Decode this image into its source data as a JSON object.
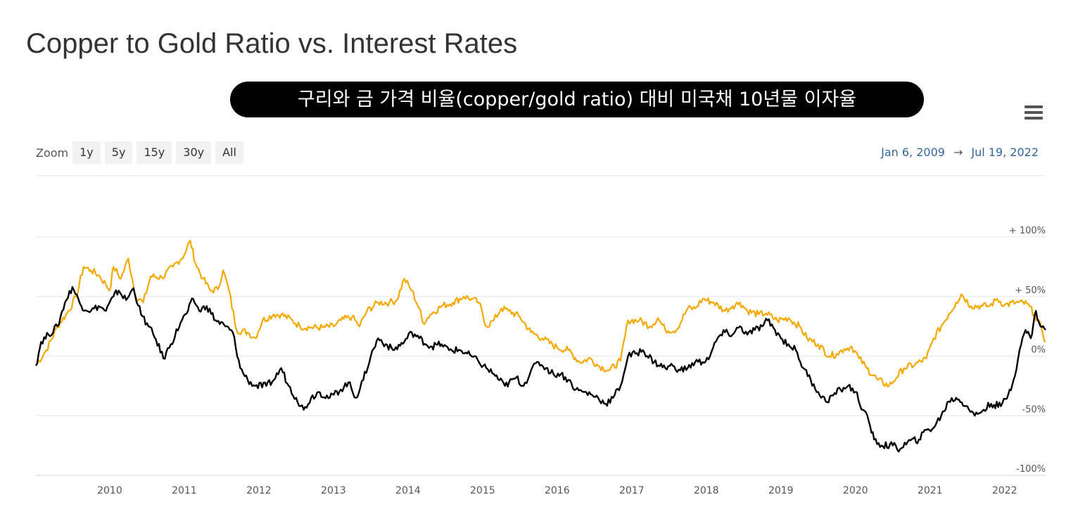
{
  "title": "Copper to Gold Ratio vs. Interest Rates",
  "banner": "구리와 금 가격 비율(copper/gold ratio) 대비 미국채 10년물 이자율",
  "zoom": {
    "label": "Zoom",
    "buttons": [
      "1y",
      "5y",
      "15y",
      "30y",
      "All"
    ]
  },
  "range": {
    "from": "Jan 6, 2009",
    "arrow": "→",
    "to": "Jul 19, 2022"
  },
  "icons": {
    "menu": "hamburger-menu-icon"
  },
  "chart_data": {
    "type": "line",
    "x_unit": "year",
    "xlim": [
      2009.01,
      2022.55
    ],
    "ylim": [
      -100,
      100
    ],
    "y_ticks": [
      {
        "value": 100,
        "label": "+ 100%"
      },
      {
        "value": 50,
        "label": "+ 50%"
      },
      {
        "value": 0,
        "label": "0%"
      },
      {
        "value": -50,
        "label": "-50%"
      },
      {
        "value": -100,
        "label": "-100%"
      }
    ],
    "x_ticks": [
      "2010",
      "2011",
      "2012",
      "2013",
      "2014",
      "2015",
      "2016",
      "2017",
      "2018",
      "2019",
      "2020",
      "2021",
      "2022"
    ],
    "grid": true,
    "series": [
      {
        "color": "#f5a800",
        "points": [
          [
            2009.01,
            -8
          ],
          [
            2009.15,
            5
          ],
          [
            2009.3,
            25
          ],
          [
            2009.45,
            38
          ],
          [
            2009.55,
            50
          ],
          [
            2009.65,
            75
          ],
          [
            2009.75,
            72
          ],
          [
            2009.85,
            68
          ],
          [
            2009.95,
            60
          ],
          [
            2010.0,
            55
          ],
          [
            2010.05,
            75
          ],
          [
            2010.15,
            65
          ],
          [
            2010.25,
            82
          ],
          [
            2010.35,
            50
          ],
          [
            2010.45,
            45
          ],
          [
            2010.55,
            67
          ],
          [
            2010.7,
            66
          ],
          [
            2010.85,
            75
          ],
          [
            2011.0,
            85
          ],
          [
            2011.08,
            97
          ],
          [
            2011.15,
            78
          ],
          [
            2011.25,
            65
          ],
          [
            2011.35,
            55
          ],
          [
            2011.45,
            56
          ],
          [
            2011.52,
            72
          ],
          [
            2011.6,
            55
          ],
          [
            2011.7,
            22
          ],
          [
            2011.85,
            20
          ],
          [
            2011.95,
            15
          ],
          [
            2012.05,
            30
          ],
          [
            2012.2,
            35
          ],
          [
            2012.3,
            35
          ],
          [
            2012.45,
            30
          ],
          [
            2012.55,
            25
          ],
          [
            2012.7,
            24
          ],
          [
            2012.85,
            24
          ],
          [
            2013.0,
            25
          ],
          [
            2013.1,
            30
          ],
          [
            2013.25,
            33
          ],
          [
            2013.35,
            25
          ],
          [
            2013.45,
            38
          ],
          [
            2013.6,
            45
          ],
          [
            2013.75,
            45
          ],
          [
            2013.85,
            47
          ],
          [
            2013.95,
            65
          ],
          [
            2014.05,
            55
          ],
          [
            2014.15,
            40
          ],
          [
            2014.2,
            28
          ],
          [
            2014.3,
            35
          ],
          [
            2014.45,
            42
          ],
          [
            2014.6,
            45
          ],
          [
            2014.75,
            50
          ],
          [
            2014.85,
            48
          ],
          [
            2014.95,
            45
          ],
          [
            2015.05,
            25
          ],
          [
            2015.15,
            30
          ],
          [
            2015.25,
            40
          ],
          [
            2015.35,
            38
          ],
          [
            2015.5,
            33
          ],
          [
            2015.65,
            20
          ],
          [
            2015.8,
            15
          ],
          [
            2016.0,
            7
          ],
          [
            2016.15,
            5
          ],
          [
            2016.3,
            -5
          ],
          [
            2016.45,
            -2
          ],
          [
            2016.55,
            -8
          ],
          [
            2016.7,
            -12
          ],
          [
            2016.85,
            -4
          ],
          [
            2016.95,
            30
          ],
          [
            2017.1,
            30
          ],
          [
            2017.25,
            25
          ],
          [
            2017.35,
            32
          ],
          [
            2017.45,
            22
          ],
          [
            2017.6,
            22
          ],
          [
            2017.75,
            40
          ],
          [
            2017.85,
            40
          ],
          [
            2017.95,
            48
          ],
          [
            2018.1,
            45
          ],
          [
            2018.25,
            38
          ],
          [
            2018.35,
            42
          ],
          [
            2018.45,
            45
          ],
          [
            2018.55,
            38
          ],
          [
            2018.7,
            35
          ],
          [
            2018.8,
            36
          ],
          [
            2018.95,
            30
          ],
          [
            2019.1,
            32
          ],
          [
            2019.25,
            25
          ],
          [
            2019.35,
            15
          ],
          [
            2019.5,
            10
          ],
          [
            2019.65,
            0
          ],
          [
            2019.75,
            2
          ],
          [
            2019.85,
            6
          ],
          [
            2019.95,
            8
          ],
          [
            2020.05,
            -2
          ],
          [
            2020.15,
            -10
          ],
          [
            2020.3,
            -20
          ],
          [
            2020.45,
            -25
          ],
          [
            2020.55,
            -18
          ],
          [
            2020.65,
            -10
          ],
          [
            2020.8,
            -7
          ],
          [
            2020.95,
            -2
          ],
          [
            2021.05,
            15
          ],
          [
            2021.15,
            25
          ],
          [
            2021.25,
            35
          ],
          [
            2021.35,
            45
          ],
          [
            2021.42,
            52
          ],
          [
            2021.55,
            42
          ],
          [
            2021.7,
            42
          ],
          [
            2021.8,
            42
          ],
          [
            2021.9,
            48
          ],
          [
            2022.0,
            43
          ],
          [
            2022.15,
            45
          ],
          [
            2022.3,
            44
          ],
          [
            2022.4,
            35
          ],
          [
            2022.5,
            22
          ],
          [
            2022.55,
            12
          ]
        ]
      },
      {
        "color": "#000000",
        "points": [
          [
            2009.01,
            -8
          ],
          [
            2009.08,
            12
          ],
          [
            2009.18,
            18
          ],
          [
            2009.3,
            25
          ],
          [
            2009.4,
            45
          ],
          [
            2009.5,
            58
          ],
          [
            2009.62,
            42
          ],
          [
            2009.75,
            38
          ],
          [
            2009.85,
            42
          ],
          [
            2009.95,
            38
          ],
          [
            2010.05,
            50
          ],
          [
            2010.12,
            55
          ],
          [
            2010.22,
            47
          ],
          [
            2010.32,
            57
          ],
          [
            2010.42,
            35
          ],
          [
            2010.52,
            25
          ],
          [
            2010.62,
            14
          ],
          [
            2010.72,
            -2
          ],
          [
            2010.82,
            10
          ],
          [
            2010.95,
            28
          ],
          [
            2011.05,
            38
          ],
          [
            2011.12,
            48
          ],
          [
            2011.2,
            38
          ],
          [
            2011.3,
            42
          ],
          [
            2011.42,
            30
          ],
          [
            2011.55,
            25
          ],
          [
            2011.65,
            20
          ],
          [
            2011.75,
            -10
          ],
          [
            2011.85,
            -20
          ],
          [
            2011.95,
            -25
          ],
          [
            2012.1,
            -25
          ],
          [
            2012.2,
            -20
          ],
          [
            2012.3,
            -10
          ],
          [
            2012.4,
            -25
          ],
          [
            2012.5,
            -35
          ],
          [
            2012.6,
            -45
          ],
          [
            2012.7,
            -35
          ],
          [
            2012.8,
            -30
          ],
          [
            2012.95,
            -35
          ],
          [
            2013.1,
            -28
          ],
          [
            2013.2,
            -22
          ],
          [
            2013.3,
            -35
          ],
          [
            2013.4,
            -20
          ],
          [
            2013.5,
            0
          ],
          [
            2013.6,
            15
          ],
          [
            2013.7,
            10
          ],
          [
            2013.8,
            5
          ],
          [
            2013.95,
            12
          ],
          [
            2014.05,
            20
          ],
          [
            2014.15,
            15
          ],
          [
            2014.3,
            8
          ],
          [
            2014.45,
            10
          ],
          [
            2014.55,
            5
          ],
          [
            2014.7,
            5
          ],
          [
            2014.85,
            0
          ],
          [
            2014.95,
            -5
          ],
          [
            2015.05,
            -10
          ],
          [
            2015.15,
            -15
          ],
          [
            2015.3,
            -25
          ],
          [
            2015.45,
            -18
          ],
          [
            2015.55,
            -25
          ],
          [
            2015.65,
            -12
          ],
          [
            2015.75,
            -5
          ],
          [
            2015.85,
            -10
          ],
          [
            2015.95,
            -15
          ],
          [
            2016.05,
            -15
          ],
          [
            2016.15,
            -20
          ],
          [
            2016.25,
            -28
          ],
          [
            2016.35,
            -30
          ],
          [
            2016.45,
            -32
          ],
          [
            2016.55,
            -35
          ],
          [
            2016.65,
            -40
          ],
          [
            2016.75,
            -35
          ],
          [
            2016.85,
            -25
          ],
          [
            2016.95,
            0
          ],
          [
            2017.05,
            2
          ],
          [
            2017.15,
            5
          ],
          [
            2017.3,
            -5
          ],
          [
            2017.45,
            -10
          ],
          [
            2017.55,
            -8
          ],
          [
            2017.65,
            -12
          ],
          [
            2017.75,
            -10
          ],
          [
            2017.85,
            -5
          ],
          [
            2017.95,
            -5
          ],
          [
            2018.05,
            0
          ],
          [
            2018.15,
            15
          ],
          [
            2018.25,
            20
          ],
          [
            2018.35,
            18
          ],
          [
            2018.45,
            25
          ],
          [
            2018.55,
            18
          ],
          [
            2018.65,
            22
          ],
          [
            2018.75,
            25
          ],
          [
            2018.82,
            30
          ],
          [
            2018.92,
            22
          ],
          [
            2019.0,
            15
          ],
          [
            2019.1,
            10
          ],
          [
            2019.2,
            5
          ],
          [
            2019.3,
            -10
          ],
          [
            2019.4,
            -20
          ],
          [
            2019.5,
            -30
          ],
          [
            2019.6,
            -38
          ],
          [
            2019.7,
            -33
          ],
          [
            2019.8,
            -28
          ],
          [
            2019.9,
            -25
          ],
          [
            2020.0,
            -30
          ],
          [
            2020.1,
            -45
          ],
          [
            2020.18,
            -55
          ],
          [
            2020.25,
            -70
          ],
          [
            2020.35,
            -75
          ],
          [
            2020.5,
            -75
          ],
          [
            2020.6,
            -78
          ],
          [
            2020.7,
            -72
          ],
          [
            2020.85,
            -70
          ],
          [
            2020.95,
            -62
          ],
          [
            2021.05,
            -60
          ],
          [
            2021.15,
            -50
          ],
          [
            2021.25,
            -38
          ],
          [
            2021.35,
            -35
          ],
          [
            2021.5,
            -42
          ],
          [
            2021.6,
            -50
          ],
          [
            2021.72,
            -45
          ],
          [
            2021.82,
            -40
          ],
          [
            2021.95,
            -42
          ],
          [
            2022.05,
            -32
          ],
          [
            2022.12,
            -20
          ],
          [
            2022.2,
            5
          ],
          [
            2022.28,
            22
          ],
          [
            2022.35,
            15
          ],
          [
            2022.42,
            38
          ],
          [
            2022.48,
            25
          ],
          [
            2022.55,
            22
          ]
        ]
      }
    ]
  }
}
